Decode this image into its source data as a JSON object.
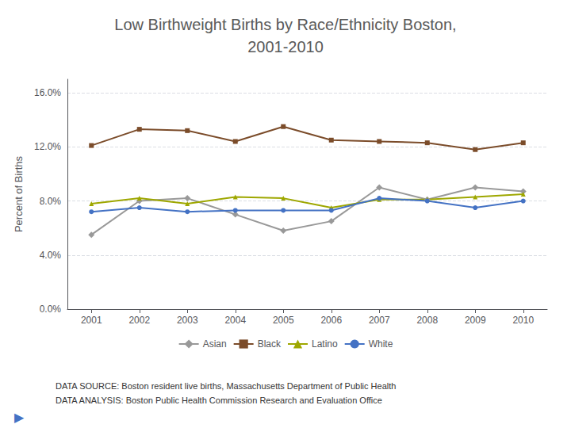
{
  "chart_data": {
    "type": "line",
    "title": "Low Birthweight Births by Race/Ethnicity Boston,\n2001-2010",
    "y_label": "Percent of Births",
    "x": [
      2001,
      2002,
      2003,
      2004,
      2005,
      2006,
      2007,
      2008,
      2009,
      2010
    ],
    "series": [
      {
        "name": "Asian",
        "color": "#999999",
        "marker": "diamond",
        "values": [
          5.5,
          8.0,
          8.2,
          7.0,
          5.8,
          6.5,
          9.0,
          8.1,
          9.0,
          8.7
        ]
      },
      {
        "name": "Black",
        "color": "#7B4C2A",
        "marker": "square",
        "values": [
          12.1,
          13.3,
          13.2,
          12.4,
          13.5,
          12.5,
          12.4,
          12.3,
          11.8,
          12.3
        ]
      },
      {
        "name": "Latino",
        "color": "#9EA700",
        "marker": "triangle",
        "values": [
          7.8,
          8.2,
          7.8,
          8.3,
          8.2,
          7.5,
          8.1,
          8.1,
          8.3,
          8.5
        ]
      },
      {
        "name": "White",
        "color": "#4472C4",
        "marker": "circle",
        "values": [
          7.2,
          7.5,
          7.2,
          7.3,
          7.3,
          7.3,
          8.2,
          8.0,
          7.5,
          8.0
        ]
      }
    ],
    "xlim": [
      2000.5,
      2010.5
    ],
    "xticks": [
      2001,
      2002,
      2003,
      2004,
      2005,
      2006,
      2007,
      2008,
      2009,
      2010
    ],
    "ylim": [
      0.0,
      17.0
    ],
    "yticks": [
      {
        "value": 0.0,
        "label": "0.0%"
      },
      {
        "value": 4.0,
        "label": "4.0%"
      },
      {
        "value": 8.0,
        "label": "8.0%"
      },
      {
        "value": 12.0,
        "label": "12.0%"
      },
      {
        "value": 16.0,
        "label": "16.0%"
      }
    ],
    "grid": true,
    "legend": "bottom",
    "annotations": [
      "DATA SOURCE: Boston resident live births, Massachusetts Department of Public Health",
      "DATA ANALYSIS: Boston Public Health Commission Research and Evaluation Office",
      "▶"
    ]
  }
}
